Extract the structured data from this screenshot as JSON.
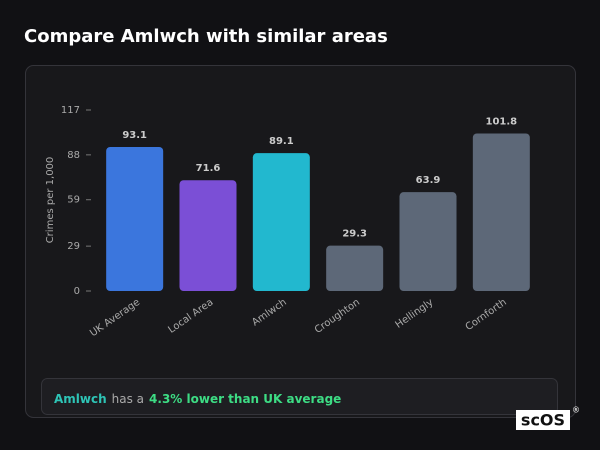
{
  "chart_data": {
    "type": "bar",
    "title": "Compare Amlwch with similar areas",
    "y_label": "Crimes per 1,000",
    "categories": [
      "UK Average",
      "Local Area",
      "Amlwch",
      "Croughton",
      "Hellingly",
      "Cornforth"
    ],
    "values": [
      93.1,
      71.6,
      89.1,
      29.3,
      63.9,
      101.8
    ],
    "colors": [
      "#3b76dd",
      "#7b4fd6",
      "#22b8cf",
      "#5d6878",
      "#5d6878",
      "#5d6878"
    ],
    "ylim": [
      0,
      117
    ],
    "yticks": [
      0,
      29,
      59,
      88,
      117
    ],
    "grid": false
  },
  "footer": {
    "area": "Amlwch",
    "middle": "has a",
    "highlight": "4.3% lower than UK average"
  },
  "logo": {
    "text": "scOS",
    "mark": "®"
  }
}
